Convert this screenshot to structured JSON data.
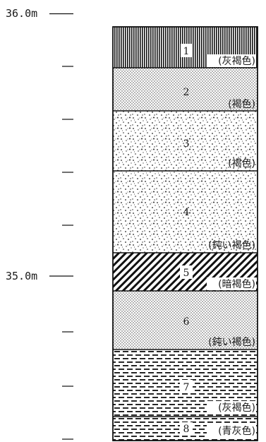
{
  "elevation_labels": {
    "top": "36.0m",
    "mid": "35.0m"
  },
  "layers": [
    {
      "number": "1",
      "color": "(灰褐色)",
      "pattern": "vertical-hatch"
    },
    {
      "number": "2",
      "color": "(褐色)",
      "pattern": "fine-dots"
    },
    {
      "number": "3",
      "color": "(褐色)",
      "pattern": "coarse-dots"
    },
    {
      "number": "4",
      "color": "(鈍い褐色)",
      "pattern": "coarse-dots"
    },
    {
      "number": "5",
      "color": "(暗褐色)",
      "pattern": "diagonal-hatch"
    },
    {
      "number": "6",
      "color": "(鈍い褐色)",
      "pattern": "fine-dots"
    },
    {
      "number": "7",
      "color": "(灰褐色)",
      "pattern": "dashes"
    },
    {
      "number": "8",
      "color": "(青灰色)",
      "pattern": "dashes"
    }
  ]
}
